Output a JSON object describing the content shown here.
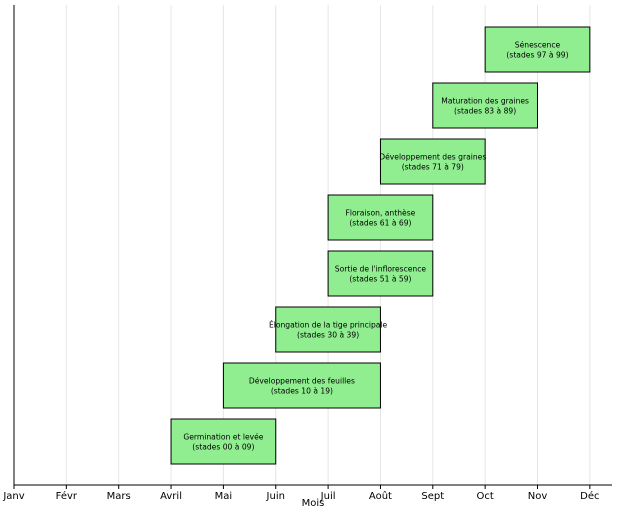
{
  "chart_data": {
    "type": "bar",
    "orientation": "horizontal-timeline",
    "title": "",
    "xlabel": "Mois",
    "ylabel": "",
    "x_tick_labels": [
      "Janv",
      "Févr",
      "Mars",
      "Avril",
      "Mai",
      "Juin",
      "Juil",
      "Août",
      "Sept",
      "Oct",
      "Nov",
      "Déc"
    ],
    "x_ticks": [
      1,
      2,
      3,
      4,
      5,
      6,
      7,
      8,
      9,
      10,
      11,
      12
    ],
    "xlim": [
      1,
      12.4
    ],
    "grid": "vertical",
    "bar_color": "#90ee90",
    "phases": [
      {
        "label": "Germination et levée",
        "sublabel": "(stades 00 à 09)",
        "start": 4,
        "end": 6
      },
      {
        "label": "Développement des feuilles",
        "sublabel": "(stades 10 à 19)",
        "start": 5,
        "end": 8
      },
      {
        "label": "Élongation de la tige principale",
        "sublabel": "(stades 30 à 39)",
        "start": 6,
        "end": 8
      },
      {
        "label": "Sortie de l'inflorescence",
        "sublabel": "(stades 51 à 59)",
        "start": 7,
        "end": 9
      },
      {
        "label": "Floraison, anthèse",
        "sublabel": "(stades 61 à 69)",
        "start": 7,
        "end": 9
      },
      {
        "label": "Développement des graines",
        "sublabel": "(stades 71 à 79)",
        "start": 8,
        "end": 10
      },
      {
        "label": "Maturation des graines",
        "sublabel": "(stades 83 à 89)",
        "start": 9,
        "end": 11
      },
      {
        "label": "Sénescence",
        "sublabel": "(stades 97 à 99)",
        "start": 10,
        "end": 12
      }
    ]
  }
}
